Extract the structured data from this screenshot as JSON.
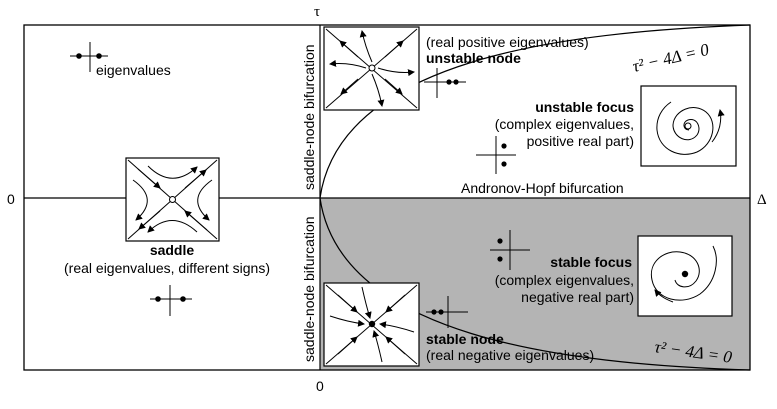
{
  "axes": {
    "tau_label": "τ",
    "delta_label": "Δ",
    "zero_left": "0",
    "zero_bottom": "0"
  },
  "legend": {
    "eigenvalues_label": "eigenvalues"
  },
  "regions": {
    "saddle": {
      "title": "saddle",
      "desc": "(real eigenvalues, different signs)"
    },
    "unstable_node": {
      "title": "unstable node",
      "desc": "(real positive eigenvalues)"
    },
    "unstable_focus": {
      "title": "unstable focus",
      "desc_line1": "(complex eigenvalues,",
      "desc_line2": "positive real part)"
    },
    "stable_focus": {
      "title": "stable focus",
      "desc_line1": "(complex eigenvalues,",
      "desc_line2": "negative real part)"
    },
    "stable_node": {
      "title": "stable node",
      "desc": "(real negative eigenvalues)"
    }
  },
  "bifurcations": {
    "hopf": "Andronov-Hopf bifurcation",
    "saddle_node_upper": "saddle-node bifurcation",
    "saddle_node_lower": "saddle-node bifurcation"
  },
  "curve_labels": {
    "upper": "τ² − 4Δ = 0",
    "lower": "τ² − 4Δ = 0"
  },
  "colors": {
    "stable_region_fill": "#b4b4b4",
    "line": "#000000",
    "background": "#ffffff"
  },
  "icons": [
    "saddle-phase-portrait-icon",
    "unstable-node-phase-portrait-icon",
    "unstable-focus-phase-portrait-icon",
    "stable-focus-phase-portrait-icon",
    "stable-node-phase-portrait-icon",
    "eigenvalue-plane-icon"
  ]
}
